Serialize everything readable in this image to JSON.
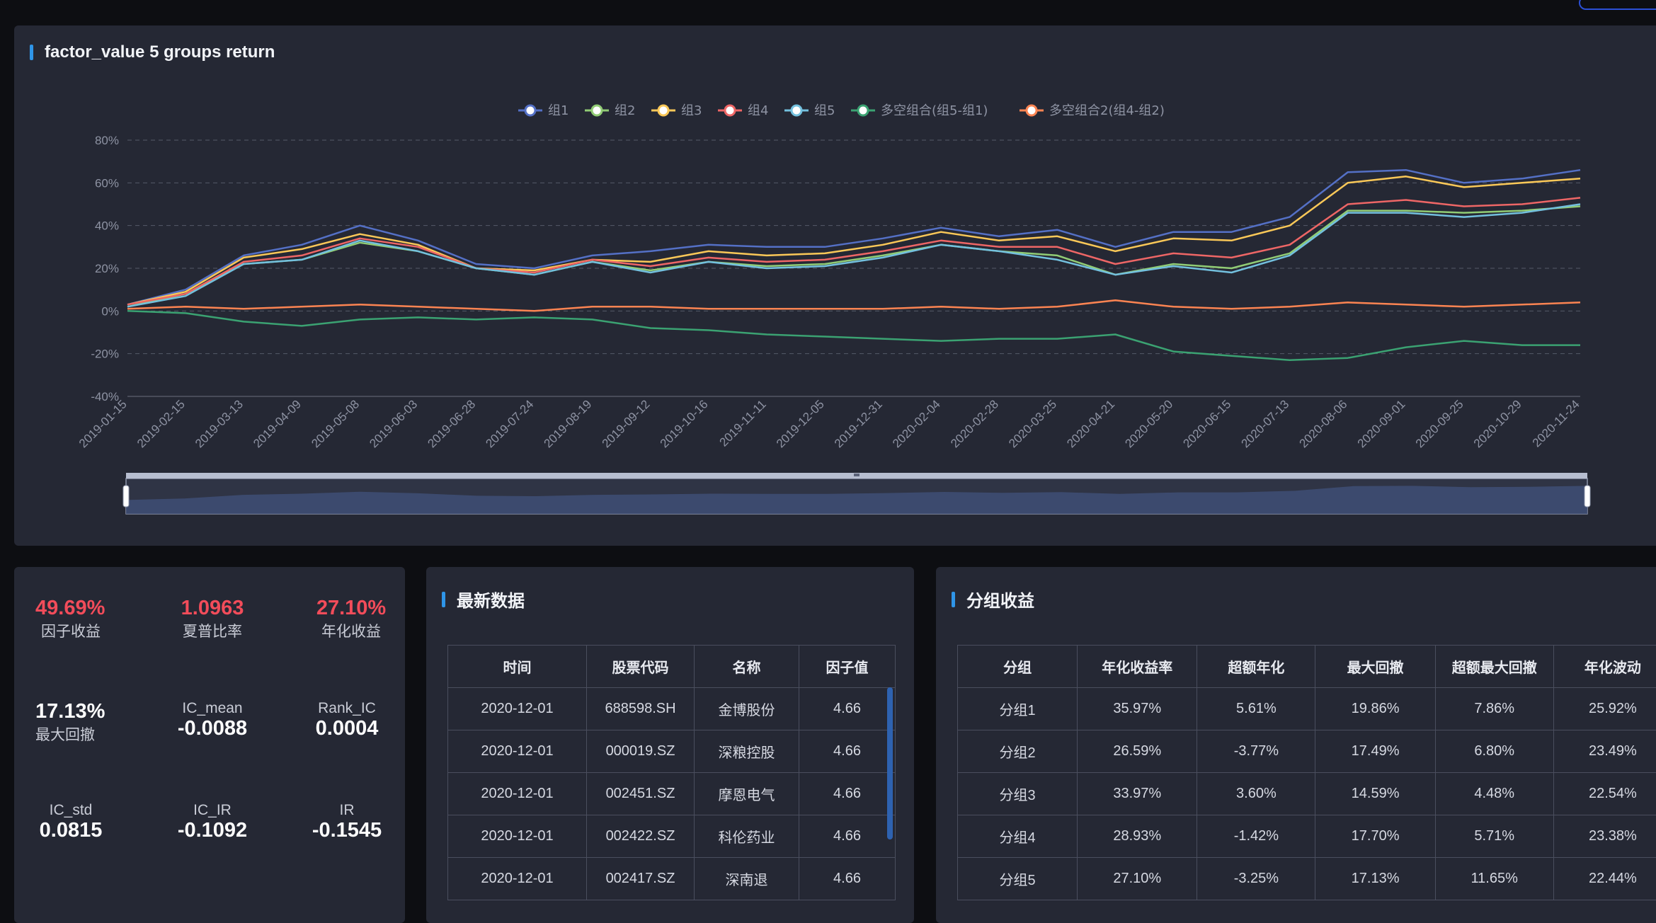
{
  "chart_panel": {
    "title": "factor_value 5 groups return",
    "chart_data": {
      "type": "line",
      "ylim": [
        -40,
        80
      ],
      "y_ticks": [
        "80%",
        "60%",
        "40%",
        "20%",
        "0%",
        "-20%",
        "-40%"
      ],
      "x_tick_labels": [
        "2019-01-15",
        "2019-02-15",
        "2019-03-13",
        "2019-04-09",
        "2019-05-08",
        "2019-06-03",
        "2019-06-28",
        "2019-07-24",
        "2019-08-19",
        "2019-09-12",
        "2019-10-16",
        "2019-11-11",
        "2019-12-05",
        "2019-12-31",
        "2020-02-04",
        "2020-02-28",
        "2020-03-25",
        "2020-04-21",
        "2020-05-20",
        "2020-06-15",
        "2020-07-13",
        "2020-08-06",
        "2020-09-01",
        "2020-09-25",
        "2020-10-29",
        "2020-11-24"
      ],
      "grid": "horizontal-dashed",
      "legend_position": "top-center",
      "series": [
        {
          "name": "组1",
          "color": "#5470c6",
          "values": [
            3,
            10,
            26,
            31,
            40,
            33,
            22,
            20,
            26,
            28,
            31,
            30,
            30,
            34,
            39,
            35,
            38,
            30,
            37,
            37,
            44,
            65,
            66,
            60,
            62,
            66
          ]
        },
        {
          "name": "组2",
          "color": "#91cc75",
          "values": [
            2,
            8,
            22,
            24,
            32,
            28,
            20,
            17,
            23,
            19,
            23,
            21,
            22,
            26,
            31,
            28,
            26,
            17,
            22,
            20,
            27,
            47,
            47,
            46,
            47,
            49
          ]
        },
        {
          "name": "组3",
          "color": "#fac858",
          "values": [
            3,
            9,
            25,
            29,
            36,
            31,
            20,
            19,
            24,
            23,
            28,
            26,
            27,
            31,
            37,
            33,
            35,
            28,
            34,
            33,
            40,
            60,
            63,
            58,
            60,
            62
          ]
        },
        {
          "name": "组4",
          "color": "#ee6666",
          "values": [
            3,
            8,
            23,
            26,
            34,
            30,
            20,
            18,
            24,
            21,
            25,
            23,
            24,
            28,
            33,
            30,
            30,
            22,
            27,
            25,
            31,
            50,
            52,
            49,
            50,
            53
          ]
        },
        {
          "name": "组5",
          "color": "#73c0de",
          "values": [
            2,
            7,
            22,
            24,
            33,
            28,
            20,
            17,
            23,
            18,
            23,
            20,
            21,
            25,
            31,
            28,
            24,
            17,
            21,
            18,
            26,
            46,
            46,
            44,
            46,
            50
          ]
        },
        {
          "name": "多空组合(组5-组1)",
          "color": "#3ba272",
          "values": [
            0,
            -1,
            -5,
            -7,
            -4,
            -3,
            -4,
            -3,
            -4,
            -8,
            -9,
            -11,
            -12,
            -13,
            -14,
            -13,
            -13,
            -11,
            -19,
            -21,
            -23,
            -22,
            -17,
            -14,
            -16,
            -16
          ]
        },
        {
          "name": "多空组合2(组4-组2)",
          "color": "#fc8452",
          "values": [
            1,
            2,
            1,
            2,
            3,
            2,
            1,
            0,
            2,
            2,
            1,
            1,
            1,
            1,
            2,
            1,
            2,
            5,
            2,
            1,
            2,
            4,
            3,
            2,
            3,
            4
          ]
        }
      ]
    }
  },
  "stats": {
    "factor_return": {
      "value": "49.69%",
      "label": "因子收益"
    },
    "sharpe": {
      "value": "1.0963",
      "label": "夏普比率"
    },
    "annual_return": {
      "value": "27.10%",
      "label": "年化收益"
    },
    "max_drawdown": {
      "value": "17.13%",
      "label": "最大回撤"
    },
    "ic_mean": {
      "label": "IC_mean",
      "value": "-0.0088"
    },
    "rank_ic": {
      "label": "Rank_IC",
      "value": "0.0004"
    },
    "ic_std": {
      "label": "IC_std",
      "value": "0.0815"
    },
    "ic_ir": {
      "label": "IC_IR",
      "value": "-0.1092"
    },
    "ir": {
      "label": "IR",
      "value": "-0.1545"
    }
  },
  "latest": {
    "title": "最新数据",
    "columns": [
      "时间",
      "股票代码",
      "名称",
      "因子值"
    ],
    "rows": [
      [
        "2020-12-01",
        "688598.SH",
        "金博股份",
        "4.66"
      ],
      [
        "2020-12-01",
        "000019.SZ",
        "深粮控股",
        "4.66"
      ],
      [
        "2020-12-01",
        "002451.SZ",
        "摩恩电气",
        "4.66"
      ],
      [
        "2020-12-01",
        "002422.SZ",
        "科伦药业",
        "4.66"
      ],
      [
        "2020-12-01",
        "002417.SZ",
        "深南退",
        "4.66"
      ]
    ]
  },
  "groups": {
    "title": "分组收益",
    "columns": [
      "分组",
      "年化收益率",
      "超额年化",
      "最大回撤",
      "超额最大回撤",
      "年化波动"
    ],
    "rows": [
      [
        "分组1",
        "35.97%",
        "5.61%",
        "19.86%",
        "7.86%",
        "25.92%"
      ],
      [
        "分组2",
        "26.59%",
        "-3.77%",
        "17.49%",
        "6.80%",
        "23.49%"
      ],
      [
        "分组3",
        "33.97%",
        "3.60%",
        "14.59%",
        "4.48%",
        "22.54%"
      ],
      [
        "分组4",
        "28.93%",
        "-1.42%",
        "17.70%",
        "5.71%",
        "23.38%"
      ],
      [
        "分组5",
        "27.10%",
        "-3.25%",
        "17.13%",
        "11.65%",
        "22.44%"
      ]
    ]
  }
}
